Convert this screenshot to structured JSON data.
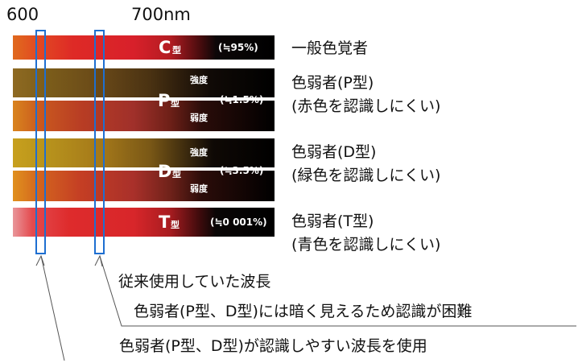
{
  "axis": {
    "label_600": "600",
    "label_700": "700nm"
  },
  "bands": {
    "c": {
      "letter": "C",
      "suffix": "型",
      "pct": "(≒95%)",
      "desc": "一般色覚者"
    },
    "p": {
      "letter": "P",
      "suffix": "型",
      "pct": "(≒1.5%)",
      "strong": "強度",
      "weak": "弱度",
      "desc_line1": "色弱者(P型)",
      "desc_line2": "(赤色を認識しにくい)"
    },
    "d": {
      "letter": "D",
      "suffix": "型",
      "pct": "(≒3.5%)",
      "strong": "強度",
      "weak": "弱度",
      "desc_line1": "色弱者(D型)",
      "desc_line2": "(緑色を認識しにくい)"
    },
    "t": {
      "letter": "T",
      "suffix": "型",
      "pct": "(≒0 001%)",
      "desc_line1": "色弱者(T型)",
      "desc_line2": "(青色を認識しにくい)"
    }
  },
  "notes": {
    "conventional_line1": "従来使用していた波長",
    "conventional_line2": "色弱者(P型、D型)には暗く見えるため認識が困難",
    "new_wavelength": "色弱者(P型、D型)が認識しやすい波長を使用"
  },
  "colors": {
    "marker": "#1e6fd1"
  }
}
